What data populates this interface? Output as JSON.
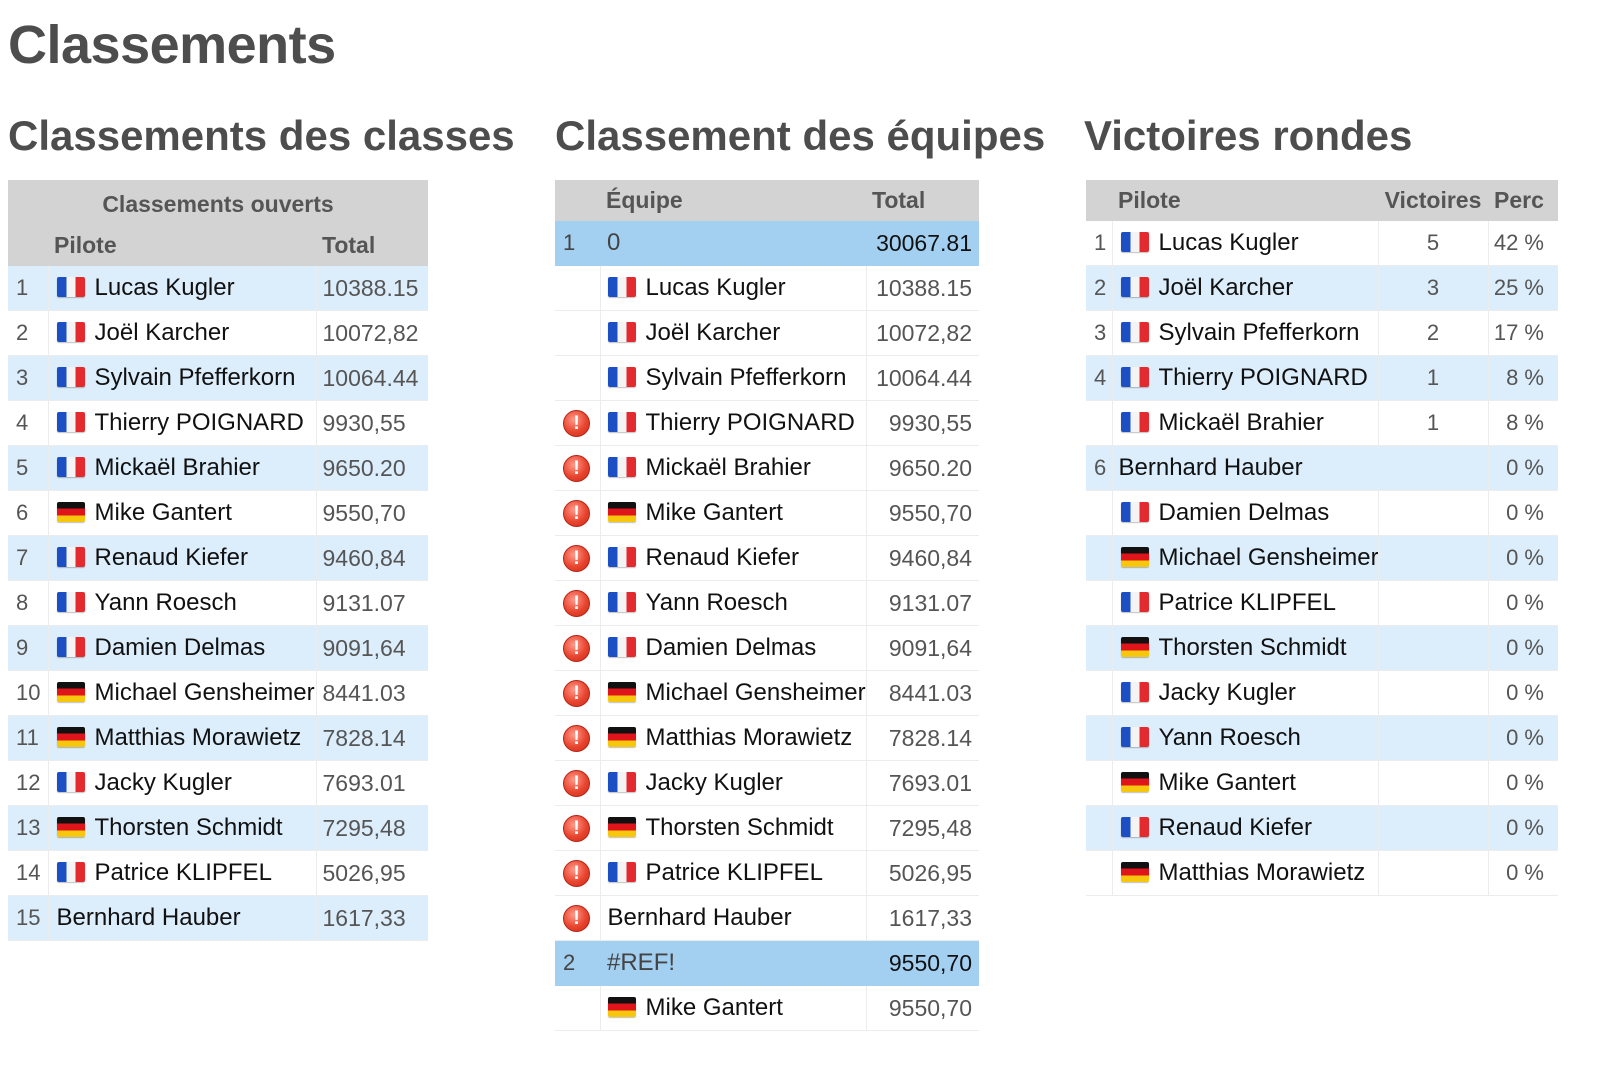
{
  "page_title": "Classements",
  "class_section": {
    "heading": "Classements des classes",
    "group_header": "Classements ouverts",
    "col_pilot": "Pilote",
    "col_total": "Total",
    "rows": [
      {
        "rank": "1",
        "flag": "fr",
        "name": "Lucas Kugler",
        "total": "10388.15"
      },
      {
        "rank": "2",
        "flag": "fr",
        "name": "Joël Karcher",
        "total": "10072,82"
      },
      {
        "rank": "3",
        "flag": "fr",
        "name": "Sylvain Pfefferkorn",
        "total": "10064.44"
      },
      {
        "rank": "4",
        "flag": "fr",
        "name": "Thierry POIGNARD",
        "total": "9930,55"
      },
      {
        "rank": "5",
        "flag": "fr",
        "name": "Mickaël Brahier",
        "total": "9650.20"
      },
      {
        "rank": "6",
        "flag": "de",
        "name": "Mike Gantert",
        "total": "9550,70"
      },
      {
        "rank": "7",
        "flag": "fr",
        "name": "Renaud Kiefer",
        "total": "9460,84"
      },
      {
        "rank": "8",
        "flag": "fr",
        "name": "Yann Roesch",
        "total": "9131.07"
      },
      {
        "rank": "9",
        "flag": "fr",
        "name": "Damien Delmas",
        "total": "9091,64"
      },
      {
        "rank": "10",
        "flag": "de",
        "name": "Michael Gensheimer",
        "total": "8441.03"
      },
      {
        "rank": "11",
        "flag": "de",
        "name": "Matthias Morawietz",
        "total": "7828.14"
      },
      {
        "rank": "12",
        "flag": "fr",
        "name": "Jacky Kugler",
        "total": "7693.01"
      },
      {
        "rank": "13",
        "flag": "de",
        "name": "Thorsten Schmidt",
        "total": "7295,48"
      },
      {
        "rank": "14",
        "flag": "fr",
        "name": "Patrice KLIPFEL",
        "total": "5026,95"
      },
      {
        "rank": "15",
        "flag": "",
        "name": "Bernhard Hauber",
        "total": "1617,33"
      }
    ]
  },
  "team_section": {
    "heading": "Classement des équipes",
    "col_team": "Équipe",
    "col_total": "Total",
    "warning_icon": "exclamation-warning-icon",
    "rows": [
      {
        "type": "team",
        "rank": "1",
        "name": "0",
        "total": "30067.81"
      },
      {
        "type": "member",
        "warn": false,
        "flag": "fr",
        "name": "Lucas Kugler",
        "total": "10388.15"
      },
      {
        "type": "member",
        "warn": false,
        "flag": "fr",
        "name": "Joël Karcher",
        "total": "10072,82"
      },
      {
        "type": "member",
        "warn": false,
        "flag": "fr",
        "name": "Sylvain Pfefferkorn",
        "total": "10064.44"
      },
      {
        "type": "member",
        "warn": true,
        "flag": "fr",
        "name": "Thierry POIGNARD",
        "total": "9930,55"
      },
      {
        "type": "member",
        "warn": true,
        "flag": "fr",
        "name": "Mickaël Brahier",
        "total": "9650.20"
      },
      {
        "type": "member",
        "warn": true,
        "flag": "de",
        "name": "Mike Gantert",
        "total": "9550,70"
      },
      {
        "type": "member",
        "warn": true,
        "flag": "fr",
        "name": "Renaud Kiefer",
        "total": "9460,84"
      },
      {
        "type": "member",
        "warn": true,
        "flag": "fr",
        "name": "Yann Roesch",
        "total": "9131.07"
      },
      {
        "type": "member",
        "warn": true,
        "flag": "fr",
        "name": "Damien Delmas",
        "total": "9091,64"
      },
      {
        "type": "member",
        "warn": true,
        "flag": "de",
        "name": "Michael Gensheimer",
        "total": "8441.03"
      },
      {
        "type": "member",
        "warn": true,
        "flag": "de",
        "name": "Matthias Morawietz",
        "total": "7828.14"
      },
      {
        "type": "member",
        "warn": true,
        "flag": "fr",
        "name": "Jacky Kugler",
        "total": "7693.01"
      },
      {
        "type": "member",
        "warn": true,
        "flag": "de",
        "name": "Thorsten Schmidt",
        "total": "7295,48"
      },
      {
        "type": "member",
        "warn": true,
        "flag": "fr",
        "name": "Patrice KLIPFEL",
        "total": "5026,95"
      },
      {
        "type": "member",
        "warn": true,
        "flag": "",
        "name": "Bernhard Hauber",
        "total": "1617,33"
      },
      {
        "type": "team",
        "rank": "2",
        "name": "#REF!",
        "total": "9550,70"
      },
      {
        "type": "member",
        "warn": false,
        "flag": "de",
        "name": "Mike Gantert",
        "total": "9550,70"
      }
    ]
  },
  "wins_section": {
    "heading": "Victoires rondes",
    "col_pilot": "Pilote",
    "col_wins": "Victoires",
    "col_perc": "Perc",
    "rows": [
      {
        "rank": "1",
        "flag": "fr",
        "name": "Lucas Kugler",
        "wins": "5",
        "perc": "42 %"
      },
      {
        "rank": "2",
        "flag": "fr",
        "name": "Joël Karcher",
        "wins": "3",
        "perc": "25 %"
      },
      {
        "rank": "3",
        "flag": "fr",
        "name": "Sylvain Pfefferkorn",
        "wins": "2",
        "perc": "17 %"
      },
      {
        "rank": "4",
        "flag": "fr",
        "name": "Thierry POIGNARD",
        "wins": "1",
        "perc": "8 %"
      },
      {
        "rank": "",
        "flag": "fr",
        "name": "Mickaël Brahier",
        "wins": "1",
        "perc": "8 %"
      },
      {
        "rank": "6",
        "flag": "",
        "name": "Bernhard Hauber",
        "wins": "",
        "perc": "0 %",
        "span": true
      },
      {
        "rank": "",
        "flag": "fr",
        "name": "Damien Delmas",
        "wins": "",
        "perc": "0 %"
      },
      {
        "rank": "",
        "flag": "de",
        "name": "Michael Gensheimer",
        "wins": "",
        "perc": "0 %"
      },
      {
        "rank": "",
        "flag": "fr",
        "name": "Patrice KLIPFEL",
        "wins": "",
        "perc": "0 %"
      },
      {
        "rank": "",
        "flag": "de",
        "name": "Thorsten Schmidt",
        "wins": "",
        "perc": "0 %"
      },
      {
        "rank": "",
        "flag": "fr",
        "name": "Jacky Kugler",
        "wins": "",
        "perc": "0 %"
      },
      {
        "rank": "",
        "flag": "fr",
        "name": "Yann Roesch",
        "wins": "",
        "perc": "0 %"
      },
      {
        "rank": "",
        "flag": "de",
        "name": "Mike Gantert",
        "wins": "",
        "perc": "0 %"
      },
      {
        "rank": "",
        "flag": "fr",
        "name": "Renaud Kiefer",
        "wins": "",
        "perc": "0 %"
      },
      {
        "rank": "",
        "flag": "de",
        "name": "Matthias Morawietz",
        "wins": "",
        "perc": "0 %"
      }
    ]
  }
}
